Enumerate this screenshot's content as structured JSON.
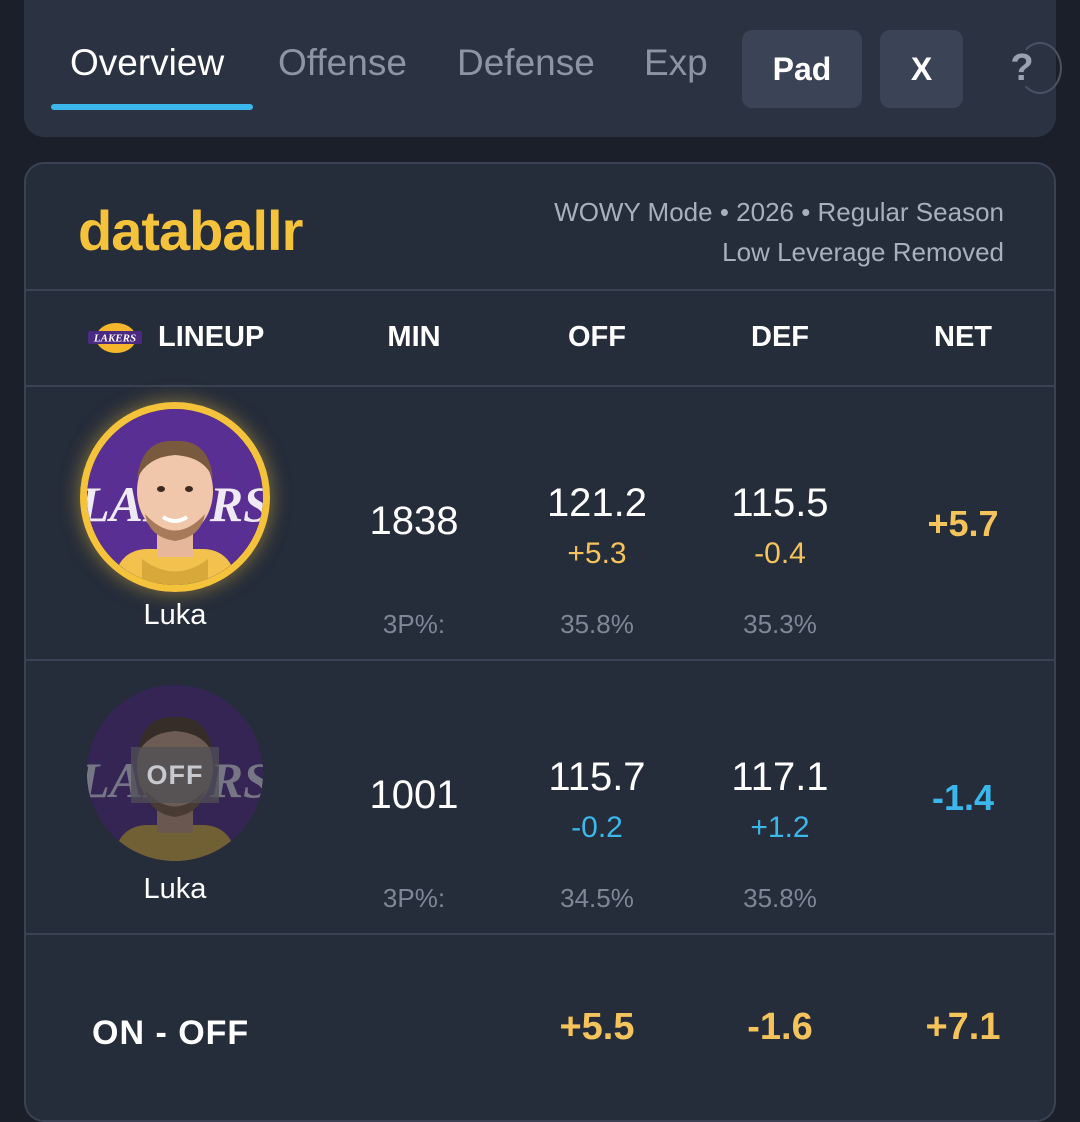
{
  "tabs": [
    {
      "label": "Overview",
      "active": true
    },
    {
      "label": "Offense",
      "active": false
    },
    {
      "label": "Defense",
      "active": false
    },
    {
      "label": "Exp",
      "active": false
    }
  ],
  "buttons": {
    "pad": "Pad",
    "x": "X",
    "help": "?"
  },
  "card": {
    "brand": "databallr",
    "meta_line1": "WOWY Mode • 2026 • Regular Season",
    "meta_line2": "Low Leverage Removed"
  },
  "headers": {
    "lineup": "LINEUP",
    "min": "MIN",
    "off": "OFF",
    "def": "DEF",
    "net": "NET"
  },
  "logo_text": "LAKERS",
  "rows": [
    {
      "player": "Luka",
      "status": "on",
      "min": "1838",
      "off": "121.2",
      "off_delta": "+5.3",
      "def": "115.5",
      "def_delta": "-0.4",
      "net": "+5.7",
      "pct_label": "3P%:",
      "off_pct": "35.8%",
      "def_pct": "35.3%"
    },
    {
      "player": "Luka",
      "status": "off",
      "off_badge": "OFF",
      "min": "1001",
      "off": "115.7",
      "off_delta": "-0.2",
      "def": "117.1",
      "def_delta": "+1.2",
      "net": "-1.4",
      "pct_label": "3P%:",
      "off_pct": "34.5%",
      "def_pct": "35.8%"
    }
  ],
  "summary": {
    "label": "ON - OFF",
    "off": "+5.5",
    "def": "-1.6",
    "net": "+7.1"
  },
  "colors": {
    "gold": "#f5c35b",
    "blue": "#3cb7ec",
    "brand": "#f5c33b",
    "accent": "#3cb7ec"
  }
}
